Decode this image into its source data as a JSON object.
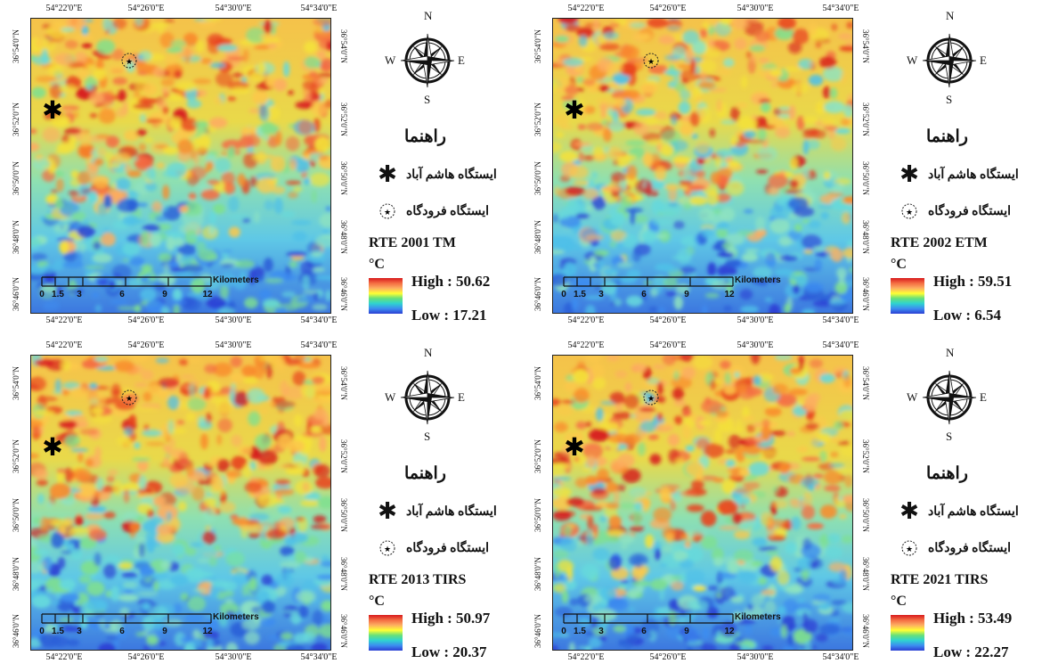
{
  "lon_ticks": [
    "54°22'0\"E",
    "54°26'0\"E",
    "54°30'0\"E",
    "54°34'0\"E"
  ],
  "lat_ticks": [
    "36°54'0\"N",
    "36°52'0\"N",
    "36°50'0\"N",
    "36°48'0\"N",
    "36°46'0\"N"
  ],
  "compass": {
    "n": "N",
    "s": "S",
    "e": "E",
    "w": "W"
  },
  "legend": {
    "title": "راهنما",
    "station": "ایستگاه هاشم آباد",
    "airport": "ایستگاه فرودگاه",
    "unit": "°C"
  },
  "scale": {
    "labels": [
      "0",
      "1.5",
      "3",
      "6",
      "9",
      "12"
    ],
    "unit": "Kilometers"
  },
  "panels": [
    {
      "title": "RTE 2001 TM",
      "high": "High : 50.62",
      "low": "Low : 17.21",
      "high_value": 50.62,
      "low_value": 17.21
    },
    {
      "title": "RTE 2002 ETM",
      "high": "High : 59.51",
      "low": "Low : 6.54",
      "high_value": 59.51,
      "low_value": 6.54
    },
    {
      "title": "RTE 2013  TIRS",
      "high": "High : 50.97",
      "low": "Low : 20.37",
      "high_value": 50.97,
      "low_value": 20.37
    },
    {
      "title": "RTE 2021 TIRS",
      "high": "High : 53.49",
      "low": "Low : 22.27",
      "high_value": 53.49,
      "low_value": 22.27
    }
  ],
  "colors": {
    "hot": "#d7191c",
    "warm": "#fdae61",
    "mid": "#ffff33",
    "cool": "#2fd3d0",
    "cold": "#2b3fd4"
  }
}
